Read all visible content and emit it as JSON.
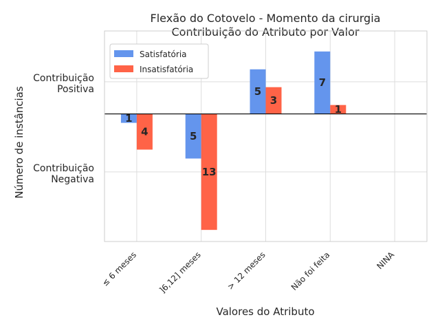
{
  "chart_data": {
    "type": "bar",
    "title": "Flexão do Cotovelo - Momento da cirurgia",
    "subtitle": "Contribuição do Atributo por Valor",
    "xlabel": "Valores do Atributo",
    "ylabel": "Número de instâncias",
    "categories": [
      "≤ 6 meses",
      "]6,12] meses",
      "> 12 meses",
      "Não foi feita",
      "NINA"
    ],
    "series": [
      {
        "name": "Satisfatória",
        "color": "#6495ED",
        "values": [
          -1,
          -5,
          5,
          7,
          0
        ]
      },
      {
        "name": "Insatisfatória",
        "color": "#FF6347",
        "values": [
          -4,
          -13,
          3,
          1,
          0
        ]
      }
    ],
    "ytick_labels": [
      {
        "value": 3.6,
        "line1": "Contribuição",
        "line2": "Positiva"
      },
      {
        "value": -6.5,
        "line1": "Contribuição",
        "line2": "Negativa"
      }
    ],
    "ylim": [
      -14.3,
      9.3
    ],
    "grid": true,
    "legend_position": "top-left"
  }
}
